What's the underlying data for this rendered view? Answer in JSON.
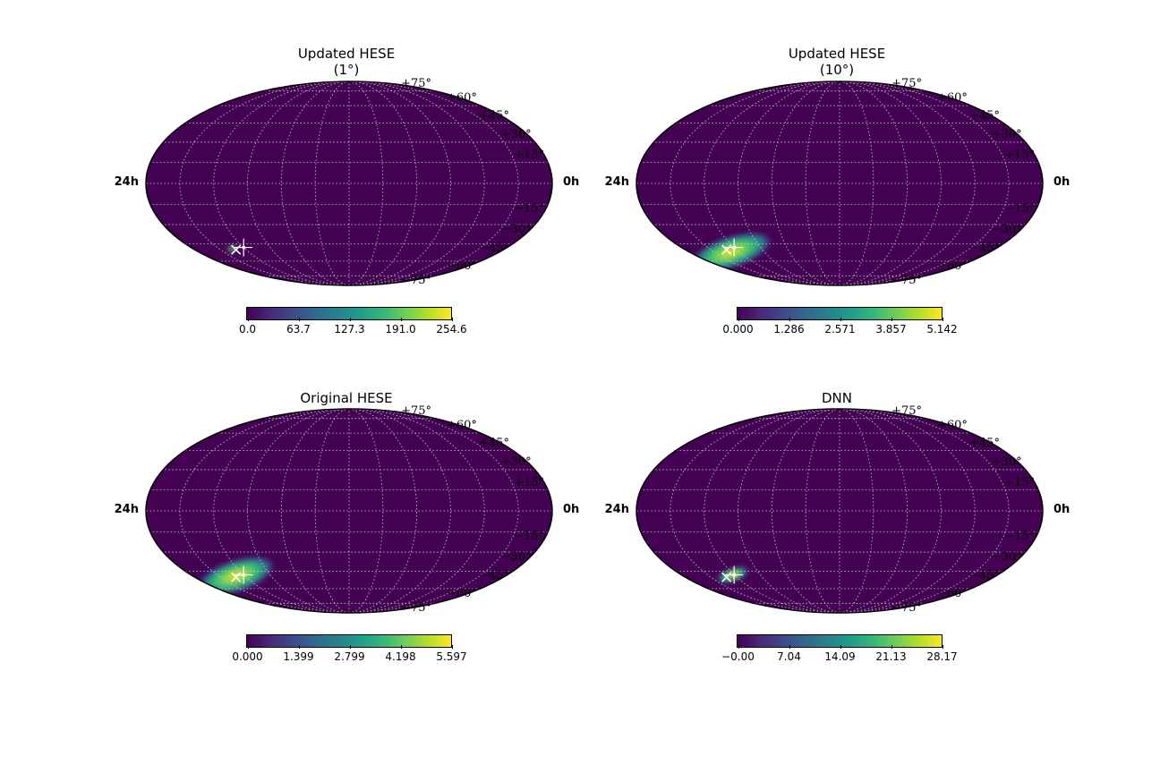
{
  "chart_data": [
    {
      "type": "heatmap",
      "projection": "mollweide",
      "title_line1": "Updated HESE",
      "title_line2": "(1°)",
      "dec_labels": [
        "+75°",
        "+60°",
        "+45°",
        "+30°",
        "+15°",
        "−15°",
        "−30°",
        "−45°",
        "−60°",
        "−75°"
      ],
      "ra_left": "24h",
      "ra_right": "0h",
      "colorbar_ticks": [
        "0.0",
        "63.7",
        "127.3",
        "191.0",
        "254.6"
      ],
      "colorbar_range": [
        0.0,
        254.6
      ],
      "colormap": "viridis",
      "hotspot": {
        "ra_hours": 3.0,
        "dec": -49,
        "spread_ra": 0.25,
        "spread_dec": 1.5,
        "peak": 0.9
      },
      "markers": {
        "plus": {
          "ra_hours": 4.0,
          "dec": -48
        },
        "cross": {
          "ra_hours": 3.2,
          "dec": -50
        }
      }
    },
    {
      "type": "heatmap",
      "projection": "mollweide",
      "title_line1": "Updated HESE",
      "title_line2": "(10°)",
      "dec_labels": [
        "+75°",
        "+60°",
        "+45°",
        "+30°",
        "+15°",
        "−15°",
        "−30°",
        "−45°",
        "−60°",
        "−75°"
      ],
      "ra_left": "24h",
      "ra_right": "0h",
      "colorbar_ticks": [
        "0.000",
        "1.286",
        "2.571",
        "3.857",
        "5.142"
      ],
      "colorbar_range": [
        0.0,
        5.142
      ],
      "colormap": "viridis",
      "hotspot": {
        "ra_hours": 3.3,
        "dec": -52,
        "spread_ra": 2.2,
        "spread_dec": 9,
        "peak": 1.0
      },
      "markers": {
        "plus": {
          "ra_hours": 4.0,
          "dec": -48
        },
        "cross": {
          "ra_hours": 3.2,
          "dec": -50
        }
      }
    },
    {
      "type": "heatmap",
      "projection": "mollweide",
      "title_line1": "Original HESE",
      "title_line2": "",
      "dec_labels": [
        "+75°",
        "+60°",
        "+45°",
        "+30°",
        "+15°",
        "−15°",
        "−30°",
        "−45°",
        "−60°",
        "−75°"
      ],
      "ra_left": "24h",
      "ra_right": "0h",
      "colorbar_ticks": [
        "0.000",
        "1.399",
        "2.799",
        "4.198",
        "5.597"
      ],
      "colorbar_range": [
        0.0,
        5.597
      ],
      "colormap": "viridis",
      "hotspot": {
        "ra_hours": 3.3,
        "dec": -49,
        "spread_ra": 2.0,
        "spread_dec": 9,
        "peak": 1.0
      },
      "markers": {
        "plus": {
          "ra_hours": 4.0,
          "dec": -48
        },
        "cross": {
          "ra_hours": 3.2,
          "dec": -50
        }
      }
    },
    {
      "type": "heatmap",
      "projection": "mollweide",
      "title_line1": "DNN",
      "title_line2": "",
      "dec_labels": [
        "+75°",
        "+60°",
        "+45°",
        "+30°",
        "+15°",
        "−15°",
        "−30°",
        "−45°",
        "−60°",
        "−75°"
      ],
      "ra_left": "24h",
      "ra_right": "0h",
      "colorbar_ticks": [
        "−0.00",
        "7.04",
        "14.09",
        "21.13",
        "28.17"
      ],
      "colorbar_range": [
        0.0,
        28.17
      ],
      "colormap": "viridis",
      "hotspot": {
        "ra_hours": 3.9,
        "dec": -48,
        "spread_ra": 0.8,
        "spread_dec": 3.5,
        "peak": 1.0
      },
      "markers": {
        "plus": {
          "ra_hours": 4.0,
          "dec": -48
        },
        "cross": {
          "ra_hours": 3.2,
          "dec": -50
        }
      }
    }
  ],
  "colors": {
    "map_background": "#440154",
    "grid": "#d0d0d0",
    "marker": "#ffffff",
    "outline": "#000000"
  }
}
